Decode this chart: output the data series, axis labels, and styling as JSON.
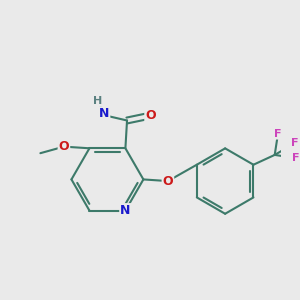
{
  "background_color": "#eaeaea",
  "bond_color": "#3d7a6a",
  "bond_width": 1.5,
  "atom_colors": {
    "N": "#1a1acc",
    "O": "#cc1a1a",
    "F": "#cc44bb",
    "H": "#5a8080",
    "C": "#3d7a6a"
  }
}
